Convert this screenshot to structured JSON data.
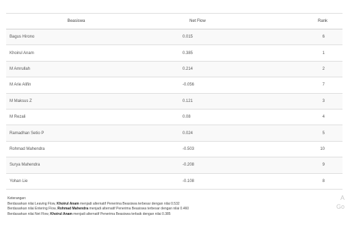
{
  "table": {
    "headers": {
      "name": "Beasiswa",
      "net_flow": "Net Flow",
      "rank": "Rank"
    },
    "rows": [
      {
        "name": "Bagus Hirono",
        "net_flow": "0.015",
        "rank": "6"
      },
      {
        "name": "Khoirul Anam",
        "net_flow": "0.385",
        "rank": "1"
      },
      {
        "name": "M Amrullah",
        "net_flow": "0.214",
        "rank": "2"
      },
      {
        "name": "M Arie Alifin",
        "net_flow": "-0.056",
        "rank": "7"
      },
      {
        "name": "M Maksus Z",
        "net_flow": "0.121",
        "rank": "3"
      },
      {
        "name": "M Rezali",
        "net_flow": "0.08",
        "rank": "4"
      },
      {
        "name": "Ramadhan Setio P",
        "net_flow": "0.024",
        "rank": "5"
      },
      {
        "name": "Rohmad Mahendra",
        "net_flow": "-0.503",
        "rank": "10"
      },
      {
        "name": "Surya Mahendra",
        "net_flow": "-0.208",
        "rank": "9"
      },
      {
        "name": "Yohan Lie",
        "net_flow": "-0.108",
        "rank": "8"
      }
    ]
  },
  "notes": {
    "heading": "Keterangan:",
    "lines": [
      {
        "before": "Berdasarkan nilai Leaving Flow,",
        "bold": "Khoirul Anam",
        "after": "menjadi alternatif Penerima Beasiswa terbesar dengan nilai 0.532"
      },
      {
        "before": "Berdasarkan nilai Entering Flow,",
        "bold": "Rohmad Mahendra",
        "after": "menjadi alternatif Penerima Beasiswa terbesar dengan nilai 0.460"
      },
      {
        "before": "Berdasarkan nilai Net Flow,",
        "bold": "Khoirul Anam",
        "after": "menjadi alternatif Penerima Beasiswa terbaik dengan nilai 0.385"
      }
    ]
  },
  "watermark": {
    "line1": "A",
    "line2": "Go"
  }
}
